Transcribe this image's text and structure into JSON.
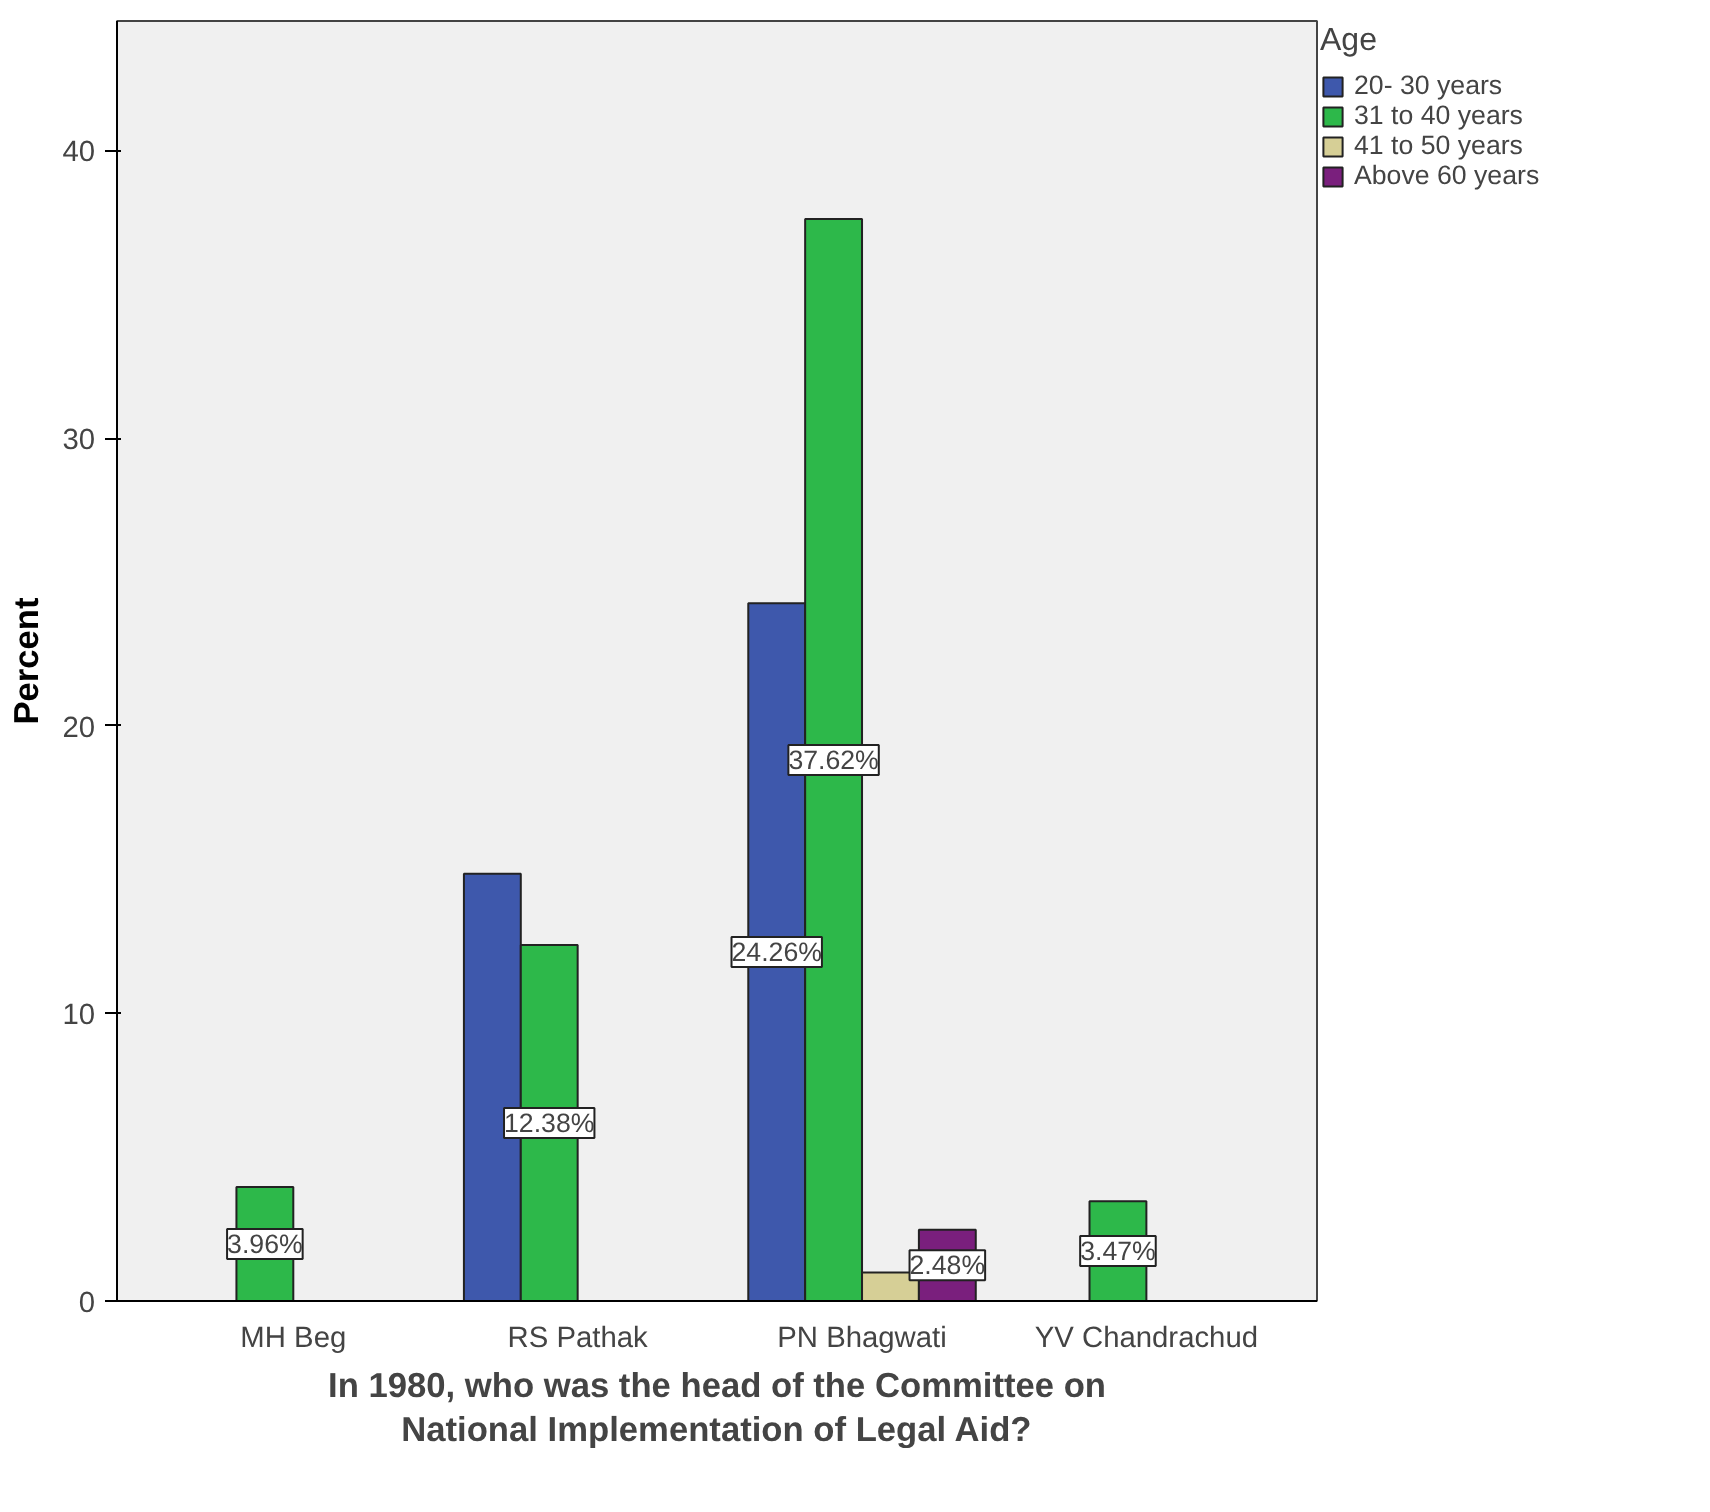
{
  "chart_data": {
    "type": "bar",
    "categories": [
      "MH Beg",
      "RS Pathak",
      "PN Bhagwati",
      "YV Chandrachud"
    ],
    "series": [
      {
        "name": "20- 30 years",
        "color": "#3e58ac",
        "values": [
          null,
          14.85,
          24.26,
          null
        ],
        "value_labels": [
          null,
          null,
          "24.26%",
          null
        ]
      },
      {
        "name": "31 to 40 years",
        "color": "#2db84a",
        "values": [
          3.96,
          12.38,
          37.62,
          3.47
        ],
        "value_labels": [
          "3.96%",
          "12.38%",
          "37.62%",
          "3.47%"
        ]
      },
      {
        "name": "41 to 50 years",
        "color": "#d6cf96",
        "values": [
          null,
          null,
          0.99,
          null
        ],
        "value_labels": [
          null,
          null,
          null,
          null
        ]
      },
      {
        "name": "Above 60 years",
        "color": "#7a1f7d",
        "values": [
          null,
          null,
          2.48,
          null
        ],
        "value_labels": [
          null,
          null,
          "2.48%",
          null
        ]
      }
    ],
    "xlabel": "In 1980, who was the head of the Committee on\nNational Implementation of Legal Aid?",
    "ylabel": "Percent",
    "legend_title": "Age",
    "ylim": [
      0,
      44.5
    ],
    "yticks": [
      0,
      10,
      20,
      30,
      40
    ],
    "grid": false,
    "legend": "top right"
  }
}
